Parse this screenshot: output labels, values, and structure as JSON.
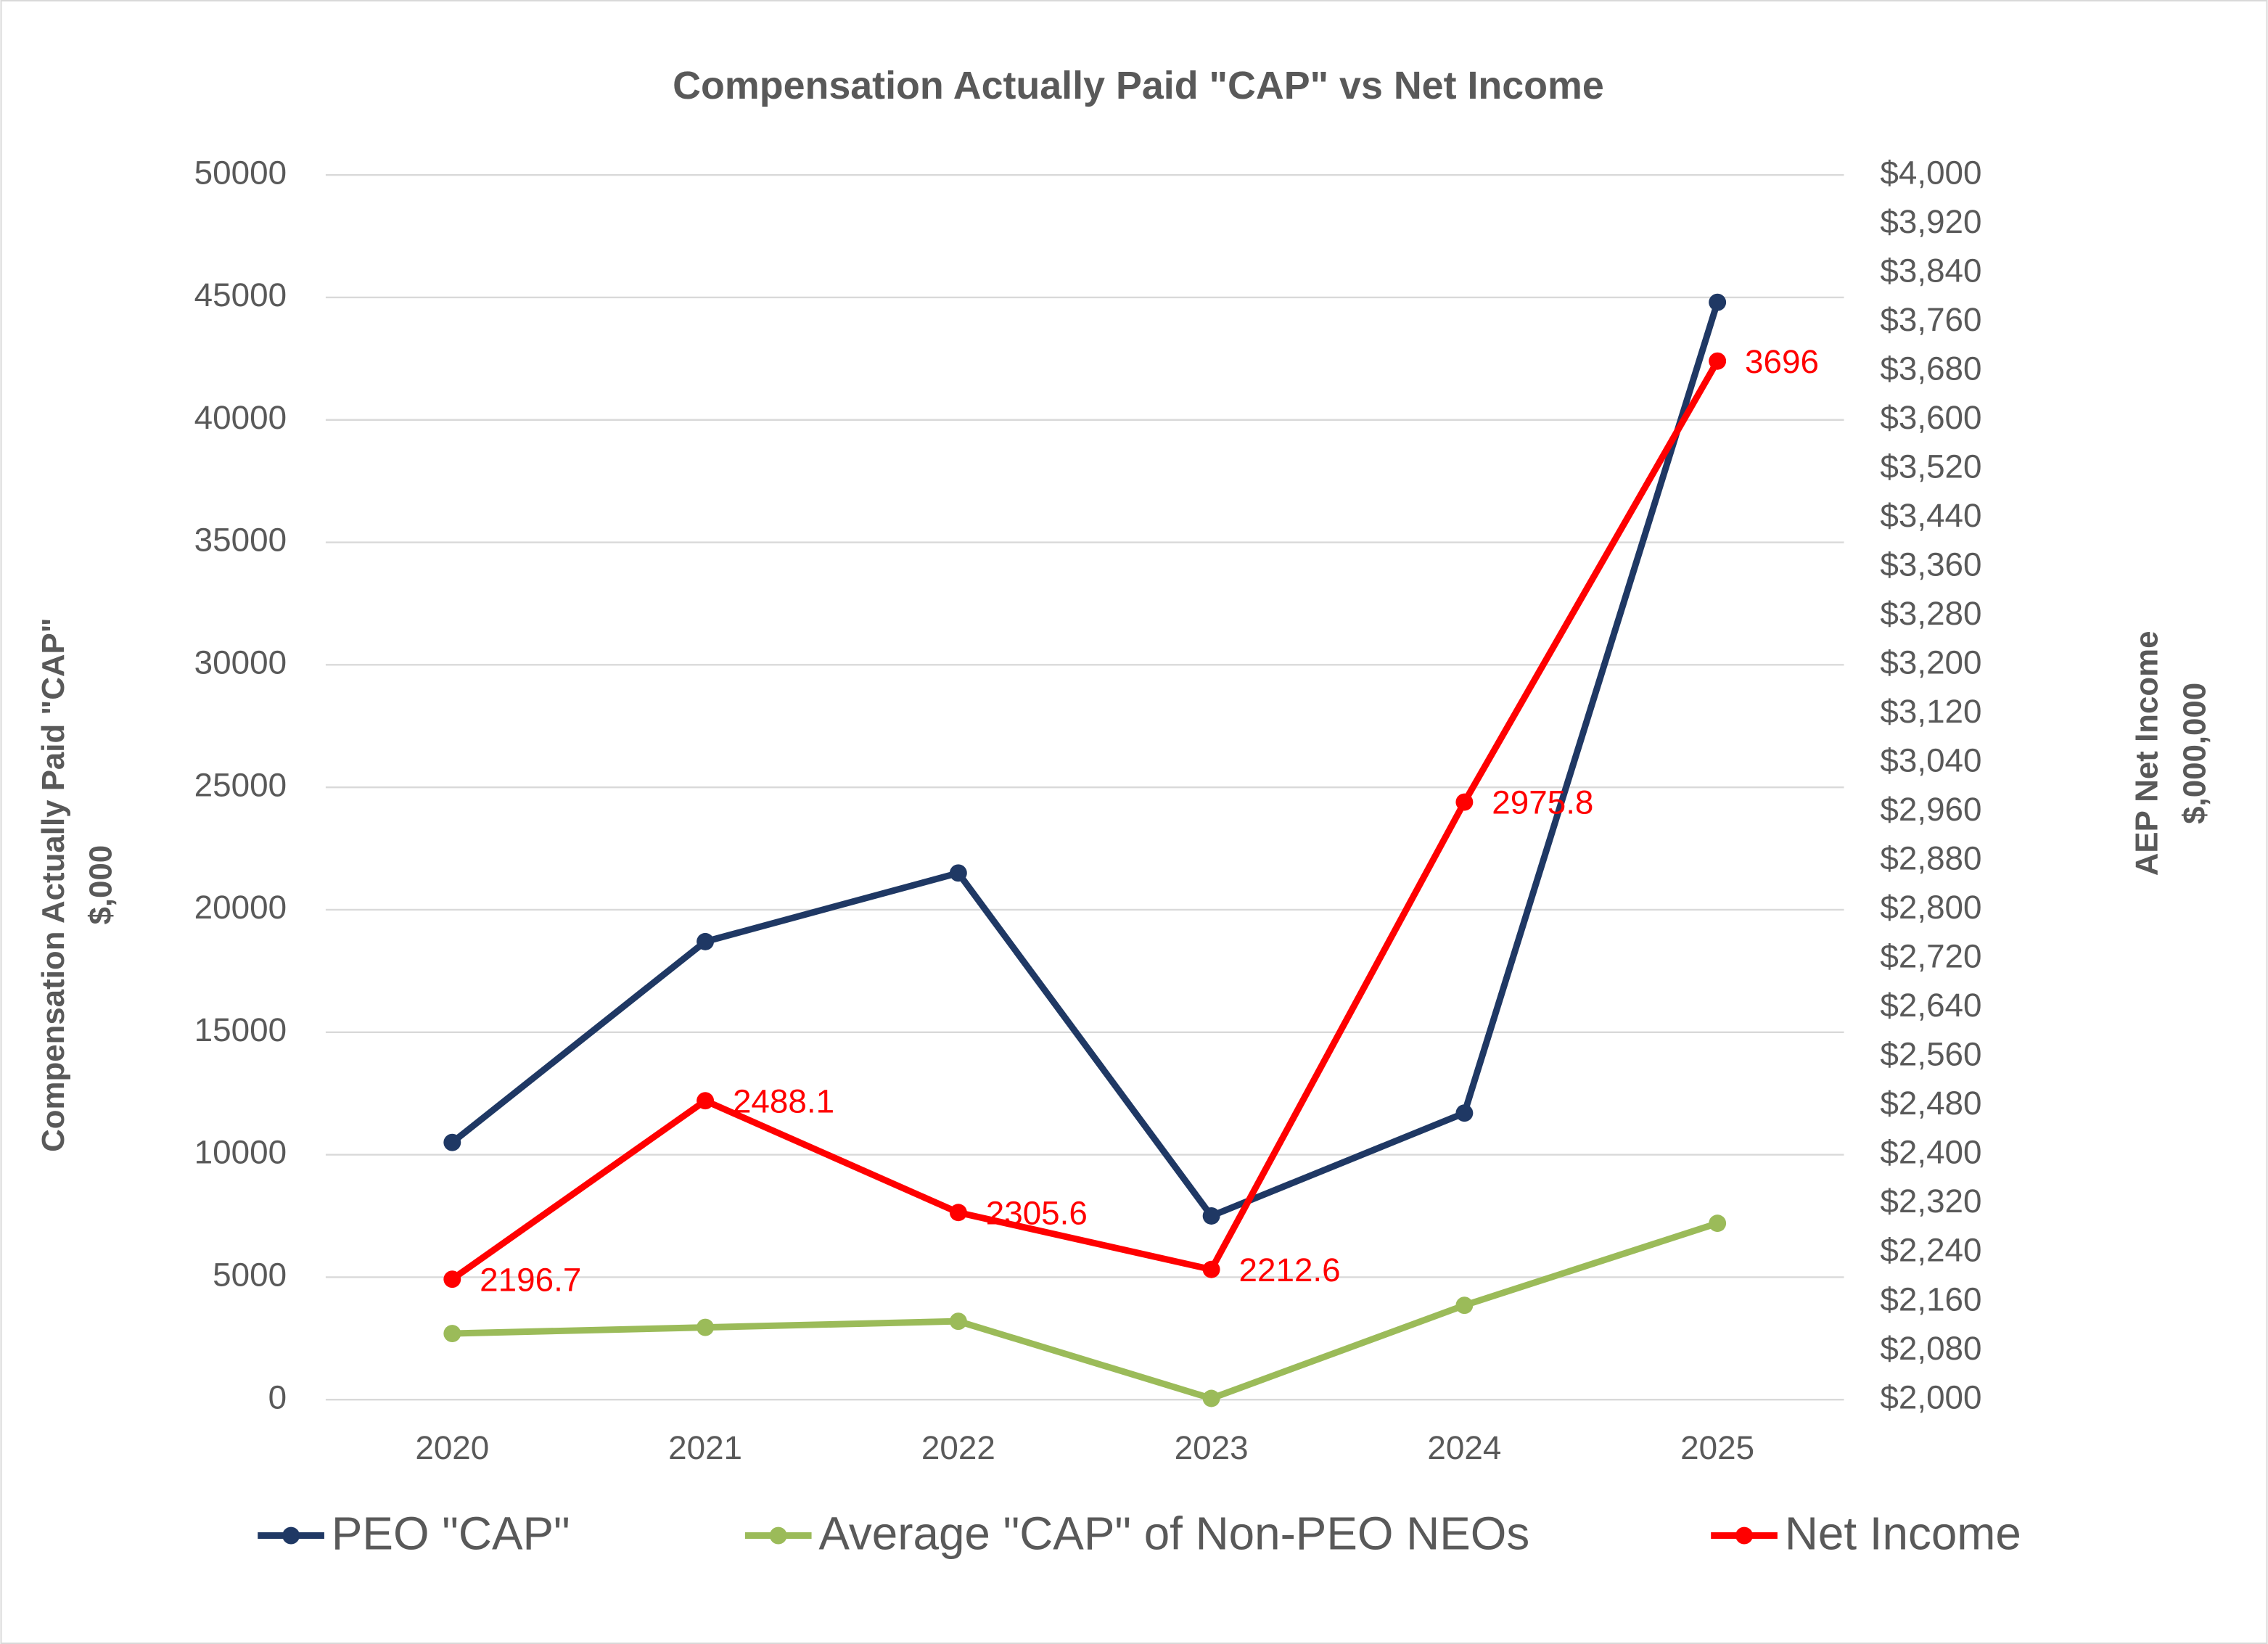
{
  "chart_data": {
    "type": "line",
    "title": "Compensation Actually Paid \"CAP\" vs Net Income",
    "y_label": [
      "Compensation Actually Paid \"CAP\"",
      "$,000"
    ],
    "y2_label": [
      "AEP Net Income",
      "$,000,000"
    ],
    "categories": [
      "2020",
      "2021",
      "2022",
      "2023",
      "2024",
      "2025"
    ],
    "series": [
      {
        "name": "PEO \"CAP\"",
        "color": "#1f3864",
        "values": [
          10500,
          18700,
          21500,
          7500,
          11700,
          44800
        ]
      },
      {
        "name": "Average \"CAP\" of Non-PEO NEOs",
        "color": "#9bbb59",
        "values": [
          2700,
          2950,
          3200,
          50,
          3850,
          7200
        ]
      },
      {
        "name": "Net Income",
        "color": "#ff0000",
        "axis": "y2",
        "values": [
          2196.7,
          2488.1,
          2305.6,
          2212.6,
          2975.8,
          3696
        ],
        "show_value_labels": true
      }
    ],
    "ylim": [
      0,
      50000
    ],
    "yticks": [
      0,
      5000,
      10000,
      15000,
      20000,
      25000,
      30000,
      35000,
      40000,
      45000,
      50000
    ],
    "y2lim": [
      2000,
      4000
    ],
    "y2ticks": [
      {
        "value": 2000,
        "label": "$2,000"
      },
      {
        "value": 2080,
        "label": "$2,080"
      },
      {
        "value": 2160,
        "label": "$2,160"
      },
      {
        "value": 2240,
        "label": "$2,240"
      },
      {
        "value": 2320,
        "label": "$2,320"
      },
      {
        "value": 2400,
        "label": "$2,400"
      },
      {
        "value": 2480,
        "label": "$2,480"
      },
      {
        "value": 2560,
        "label": "$2,560"
      },
      {
        "value": 2640,
        "label": "$2,640"
      },
      {
        "value": 2720,
        "label": "$2,720"
      },
      {
        "value": 2800,
        "label": "$2,800"
      },
      {
        "value": 2880,
        "label": "$2,880"
      },
      {
        "value": 2960,
        "label": "$2,960"
      },
      {
        "value": 3040,
        "label": "$3,040"
      },
      {
        "value": 3120,
        "label": "$3,120"
      },
      {
        "value": 3200,
        "label": "$3,200"
      },
      {
        "value": 3280,
        "label": "$3,280"
      },
      {
        "value": 3360,
        "label": "$3,360"
      },
      {
        "value": 3440,
        "label": "$3,440"
      },
      {
        "value": 3520,
        "label": "$3,520"
      },
      {
        "value": 3600,
        "label": "$3,600"
      },
      {
        "value": 3680,
        "label": "$3,680"
      },
      {
        "value": 3760,
        "label": "$3,760"
      },
      {
        "value": 3840,
        "label": "$3,840"
      },
      {
        "value": 3920,
        "label": "$3,920"
      },
      {
        "value": 4000,
        "label": "$4,000"
      }
    ],
    "grid": true,
    "legend": "bottom"
  }
}
